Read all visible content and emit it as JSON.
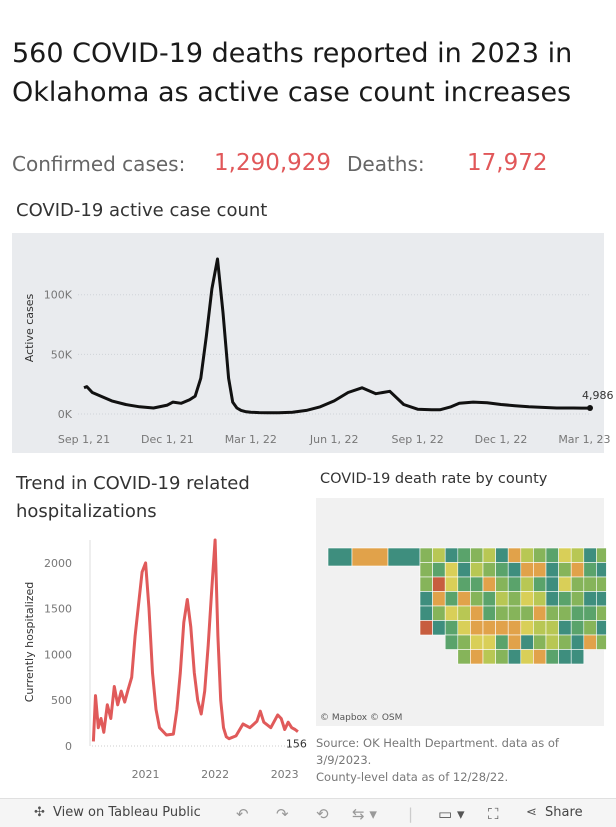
{
  "headline": "560 COVID-19 deaths reported in 2023 in Oklahoma as active case count increases",
  "stats": {
    "confirmed_label": "Confirmed cases:",
    "confirmed_value": "1,290,929",
    "deaths_label": "Deaths:",
    "deaths_value": "17,972"
  },
  "active_title": "COVID-19 active case count",
  "hosp_title_line1": "Trend in COVID-19 related",
  "hosp_title_line2": "hospitalizations",
  "map_title": "COVID-19 death rate by county",
  "map_credit": "© Mapbox  © OSM",
  "source_line1": "Source: OK Health Department. data as of",
  "source_line2": "3/9/2023.",
  "source_line3": "County-level data as of 12/28/22.",
  "toolbar": {
    "view": "View on Tableau Public",
    "share": "Share",
    "undo_icon": "undo-icon",
    "redo_icon": "redo-icon",
    "revert_icon": "revert-icon",
    "refresh_icon": "refresh-icon",
    "comment_icon": "comment-icon",
    "fullscreen_icon": "fullscreen-icon",
    "tableau_icon": "tableau-icon",
    "share_icon": "share-icon"
  },
  "colors": {
    "accent": "#e15759",
    "line_black": "#111111",
    "line_red": "#e05a5a",
    "panel_bg": "#e9ebee"
  },
  "chart_data": [
    {
      "type": "line",
      "title": "COVID-19 active case count",
      "ylabel": "Active cases",
      "xlabel": "",
      "x_ticks": [
        "Sep 1, 21",
        "Dec 1, 21",
        "Mar 1, 22",
        "Jun 1, 22",
        "Sep 1, 22",
        "Dec 1, 22",
        "Mar 1, 23"
      ],
      "y_ticks": [
        "0K",
        "50K",
        "100K"
      ],
      "ylim": [
        0,
        135000
      ],
      "last_label": "4,986",
      "series": [
        {
          "x": [
            0,
            0.1,
            0.3,
            0.6,
            1.0,
            1.5,
            2.0,
            2.5,
            3.0,
            3.2,
            3.5,
            3.8,
            4.0,
            4.2,
            4.4,
            4.6,
            4.8,
            5.0,
            5.2,
            5.35,
            5.5,
            5.65,
            5.8,
            6.0,
            6.3,
            6.6,
            7.0,
            7.5,
            8.0,
            8.5,
            9.0,
            9.5,
            10.0,
            10.5,
            11.0,
            11.5,
            12.0,
            12.5,
            12.8,
            13.2,
            13.5,
            14.0,
            14.5,
            15.0,
            15.5,
            16.0,
            16.5,
            17.0,
            17.3,
            17.6,
            17.9,
            18.2
          ],
          "y": [
            22000,
            23000,
            18000,
            15000,
            11000,
            8000,
            6000,
            5000,
            7500,
            10000,
            9000,
            12000,
            15000,
            30000,
            65000,
            105000,
            130000,
            85000,
            30000,
            10000,
            5000,
            3000,
            2000,
            1500,
            1200,
            1000,
            1000,
            1500,
            3000,
            6000,
            11000,
            18000,
            22000,
            17000,
            19000,
            8000,
            4000,
            3500,
            3500,
            6000,
            9000,
            10000,
            9500,
            8000,
            7000,
            6000,
            5500,
            5000,
            5000,
            5000,
            4986,
            4986
          ]
        }
      ]
    },
    {
      "type": "line",
      "title": "Trend in COVID-19 related hospitalizations",
      "ylabel": "Currently hospitalized",
      "x_ticks": [
        "2021",
        "2022",
        "2023"
      ],
      "y_ticks": [
        "0",
        "500",
        "1000",
        "1500",
        "2000"
      ],
      "ylim": [
        0,
        2250
      ],
      "last_label": "156",
      "series": [
        {
          "x": [
            2020.25,
            2020.28,
            2020.32,
            2020.36,
            2020.4,
            2020.45,
            2020.5,
            2020.55,
            2020.6,
            2020.65,
            2020.7,
            2020.75,
            2020.8,
            2020.85,
            2020.9,
            2020.95,
            2021.0,
            2021.05,
            2021.1,
            2021.15,
            2021.2,
            2021.3,
            2021.4,
            2021.45,
            2021.5,
            2021.55,
            2021.6,
            2021.65,
            2021.7,
            2021.75,
            2021.8,
            2021.85,
            2021.9,
            2021.95,
            2022.0,
            2022.04,
            2022.08,
            2022.12,
            2022.16,
            2022.2,
            2022.3,
            2022.4,
            2022.5,
            2022.6,
            2022.65,
            2022.7,
            2022.8,
            2022.9,
            2022.95,
            2023.0,
            2023.05,
            2023.1,
            2023.15,
            2023.19
          ],
          "y": [
            50,
            550,
            200,
            300,
            150,
            450,
            300,
            650,
            450,
            600,
            480,
            620,
            750,
            1200,
            1550,
            1900,
            2000,
            1500,
            800,
            400,
            200,
            120,
            130,
            400,
            800,
            1350,
            1600,
            1300,
            800,
            500,
            350,
            600,
            1100,
            1700,
            2250,
            1200,
            500,
            200,
            100,
            80,
            110,
            240,
            200,
            270,
            380,
            260,
            200,
            340,
            300,
            180,
            260,
            200,
            180,
            156
          ]
        }
      ]
    }
  ]
}
